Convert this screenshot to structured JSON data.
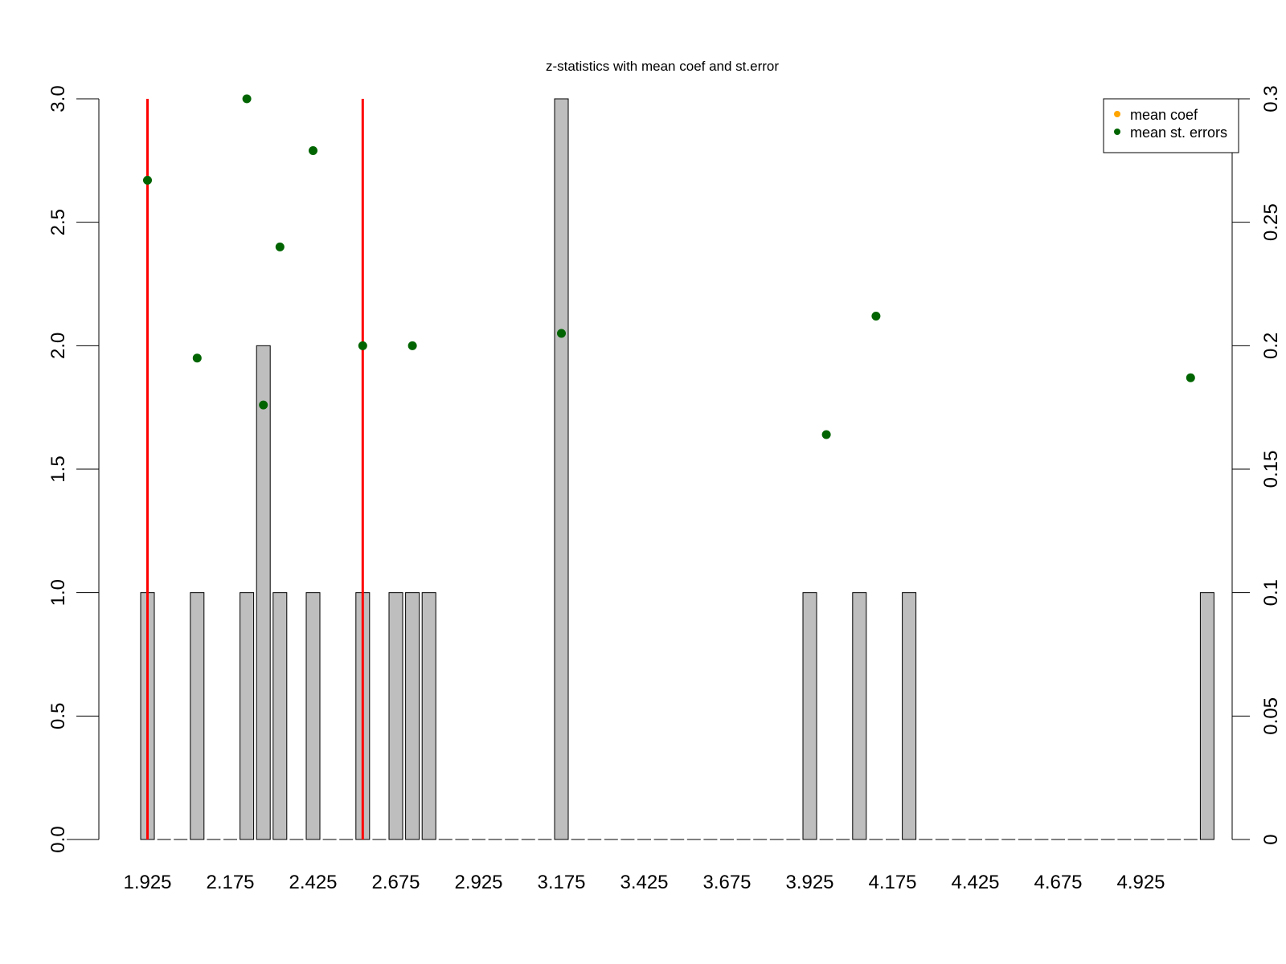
{
  "chart_data": {
    "type": "bar",
    "title": "z-statistics with mean coef and st.error",
    "xlabel": "",
    "ylabel": "",
    "categories": [
      "1.925",
      "1.975",
      "2.025",
      "2.075",
      "2.125",
      "2.175",
      "2.225",
      "2.275",
      "2.325",
      "2.375",
      "2.425",
      "2.475",
      "2.525",
      "2.575",
      "2.625",
      "2.675",
      "2.725",
      "2.775",
      "2.825",
      "2.875",
      "2.925",
      "2.975",
      "3.025",
      "3.075",
      "3.125",
      "3.175",
      "3.225",
      "3.275",
      "3.325",
      "3.375",
      "3.425",
      "3.475",
      "3.525",
      "3.575",
      "3.625",
      "3.675",
      "3.725",
      "3.775",
      "3.825",
      "3.875",
      "3.925",
      "3.975",
      "4.025",
      "4.075",
      "4.125",
      "4.175",
      "4.225",
      "4.275",
      "4.325",
      "4.375",
      "4.425",
      "4.475",
      "4.525",
      "4.575",
      "4.625",
      "4.675",
      "4.725",
      "4.775",
      "4.825",
      "4.875",
      "4.925",
      "4.975",
      "5.025",
      "5.075",
      "5.125"
    ],
    "x_tick_labels": [
      "1.925",
      "2.175",
      "2.425",
      "2.675",
      "2.925",
      "3.175",
      "3.425",
      "3.675",
      "3.925",
      "4.175",
      "4.425",
      "4.675",
      "4.925"
    ],
    "series": [
      {
        "values": [
          1,
          0,
          0,
          1,
          0,
          0,
          1,
          2,
          1,
          0,
          1,
          0,
          0,
          1,
          0,
          1,
          1,
          1,
          0,
          0,
          0,
          0,
          0,
          0,
          0,
          3,
          0,
          0,
          0,
          0,
          0,
          0,
          0,
          0,
          0,
          0,
          0,
          0,
          0,
          0,
          1,
          0,
          0,
          1,
          0,
          0,
          1,
          0,
          0,
          0,
          0,
          0,
          0,
          0,
          0,
          0,
          0,
          0,
          0,
          0,
          0,
          0,
          0,
          0,
          1
        ],
        "color": "#bebebe"
      },
      {
        "name": "mean coef",
        "type": "points",
        "axis": "right",
        "color": "#ffa500",
        "points": []
      },
      {
        "name": "mean st. errors",
        "type": "points",
        "axis": "right",
        "color": "#006400",
        "points": [
          {
            "category": "1.925",
            "value": 0.267
          },
          {
            "category": "2.075",
            "value": 0.195
          },
          {
            "category": "2.225",
            "value": 0.3
          },
          {
            "category": "2.275",
            "value": 0.176
          },
          {
            "category": "2.325",
            "value": 0.24
          },
          {
            "category": "2.425",
            "value": 0.279
          },
          {
            "category": "2.575",
            "value": 0.2
          },
          {
            "category": "2.725",
            "value": 0.2
          },
          {
            "category": "3.175",
            "value": 0.205
          },
          {
            "category": "3.975",
            "value": 0.164
          },
          {
            "category": "4.125",
            "value": 0.212
          },
          {
            "category": "5.075",
            "value": 0.187
          }
        ]
      }
    ],
    "vlines": [
      {
        "category": "1.925",
        "color": "#ff0000"
      },
      {
        "category": "2.575",
        "color": "#ff0000"
      }
    ],
    "ylim": [
      0,
      3
    ],
    "y_ticks": [
      "0.0",
      "0.5",
      "1.0",
      "1.5",
      "2.0",
      "2.5",
      "3.0"
    ],
    "y2lim": [
      0,
      0.3
    ],
    "y2_ticks": [
      "0",
      "0.05",
      "0.1",
      "0.15",
      "0.2",
      "0.25",
      "0.3"
    ],
    "legend": {
      "placement": "top-right",
      "entries": [
        {
          "label": "mean coef",
          "color": "#ffa500"
        },
        {
          "label": "mean st. errors",
          "color": "#006400"
        }
      ]
    },
    "grid": false
  }
}
